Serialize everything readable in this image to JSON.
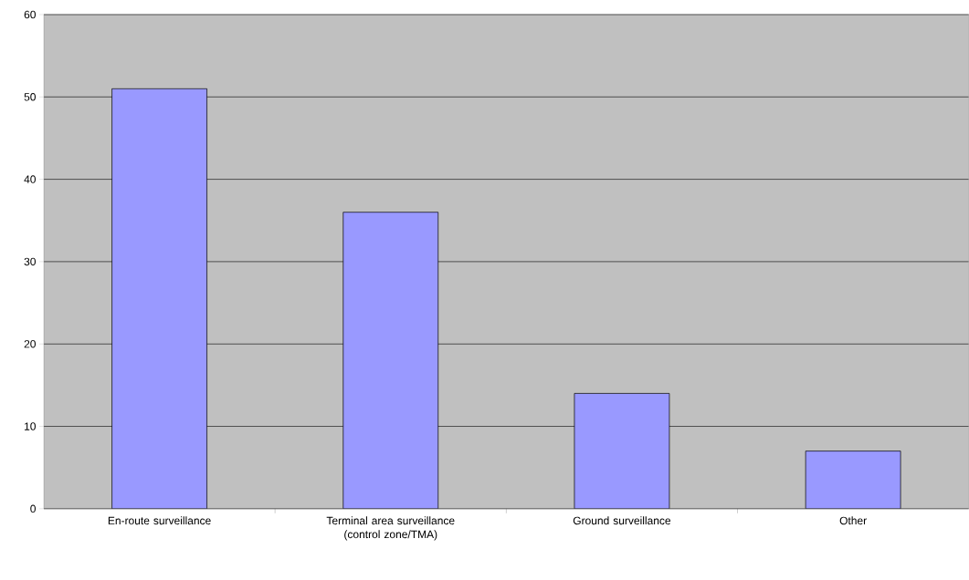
{
  "chart_data": {
    "type": "bar",
    "categories": [
      "En-route surveillance",
      "Terminal area surveillance (control zone/TMA)",
      "Ground surveillance",
      "Other"
    ],
    "values": [
      51,
      36,
      14,
      7
    ],
    "color": "#9999ff",
    "ylim": [
      0,
      60
    ],
    "yticks": [
      0,
      10,
      20,
      30,
      40,
      50,
      60
    ],
    "grid": "y"
  }
}
